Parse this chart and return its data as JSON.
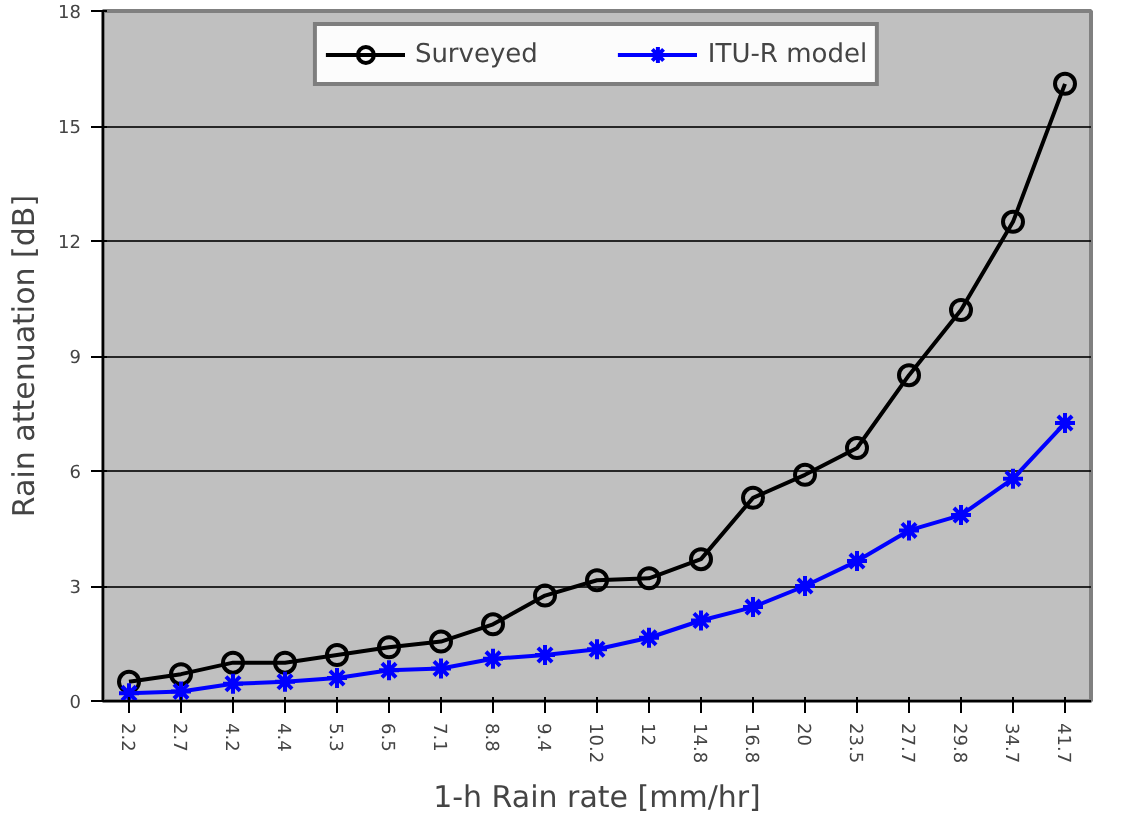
{
  "chart_data": {
    "type": "line",
    "xlabel": "1-h Rain rate [mm/hr]",
    "ylabel": "Rain attenuation [dB]",
    "categories": [
      "2.2",
      "2.7",
      "4.2",
      "4.4",
      "5.3",
      "6.5",
      "7.1",
      "8.8",
      "9.4",
      "10.2",
      "12",
      "14.8",
      "16.8",
      "20",
      "23.5",
      "27.7",
      "29.8",
      "34.7",
      "41.7"
    ],
    "series": [
      {
        "name": "Surveyed",
        "color": "#000000",
        "marker": "circle",
        "values": [
          0.5,
          0.7,
          1.0,
          1.0,
          1.2,
          1.4,
          1.55,
          2.0,
          2.75,
          3.15,
          3.2,
          3.7,
          5.3,
          5.9,
          6.6,
          8.5,
          10.2,
          12.5,
          16.1
        ]
      },
      {
        "name": "ITU-R model",
        "color": "#0000ff",
        "marker": "cross",
        "values": [
          0.2,
          0.25,
          0.45,
          0.5,
          0.6,
          0.8,
          0.85,
          1.1,
          1.2,
          1.35,
          1.65,
          2.1,
          2.45,
          3.0,
          3.65,
          4.45,
          4.85,
          5.8,
          7.25
        ]
      }
    ],
    "ylim": [
      0,
      18
    ],
    "yticks": [
      0,
      3,
      6,
      9,
      12,
      15,
      18
    ],
    "grid": "y",
    "legend": "top",
    "line_style": "solid"
  }
}
